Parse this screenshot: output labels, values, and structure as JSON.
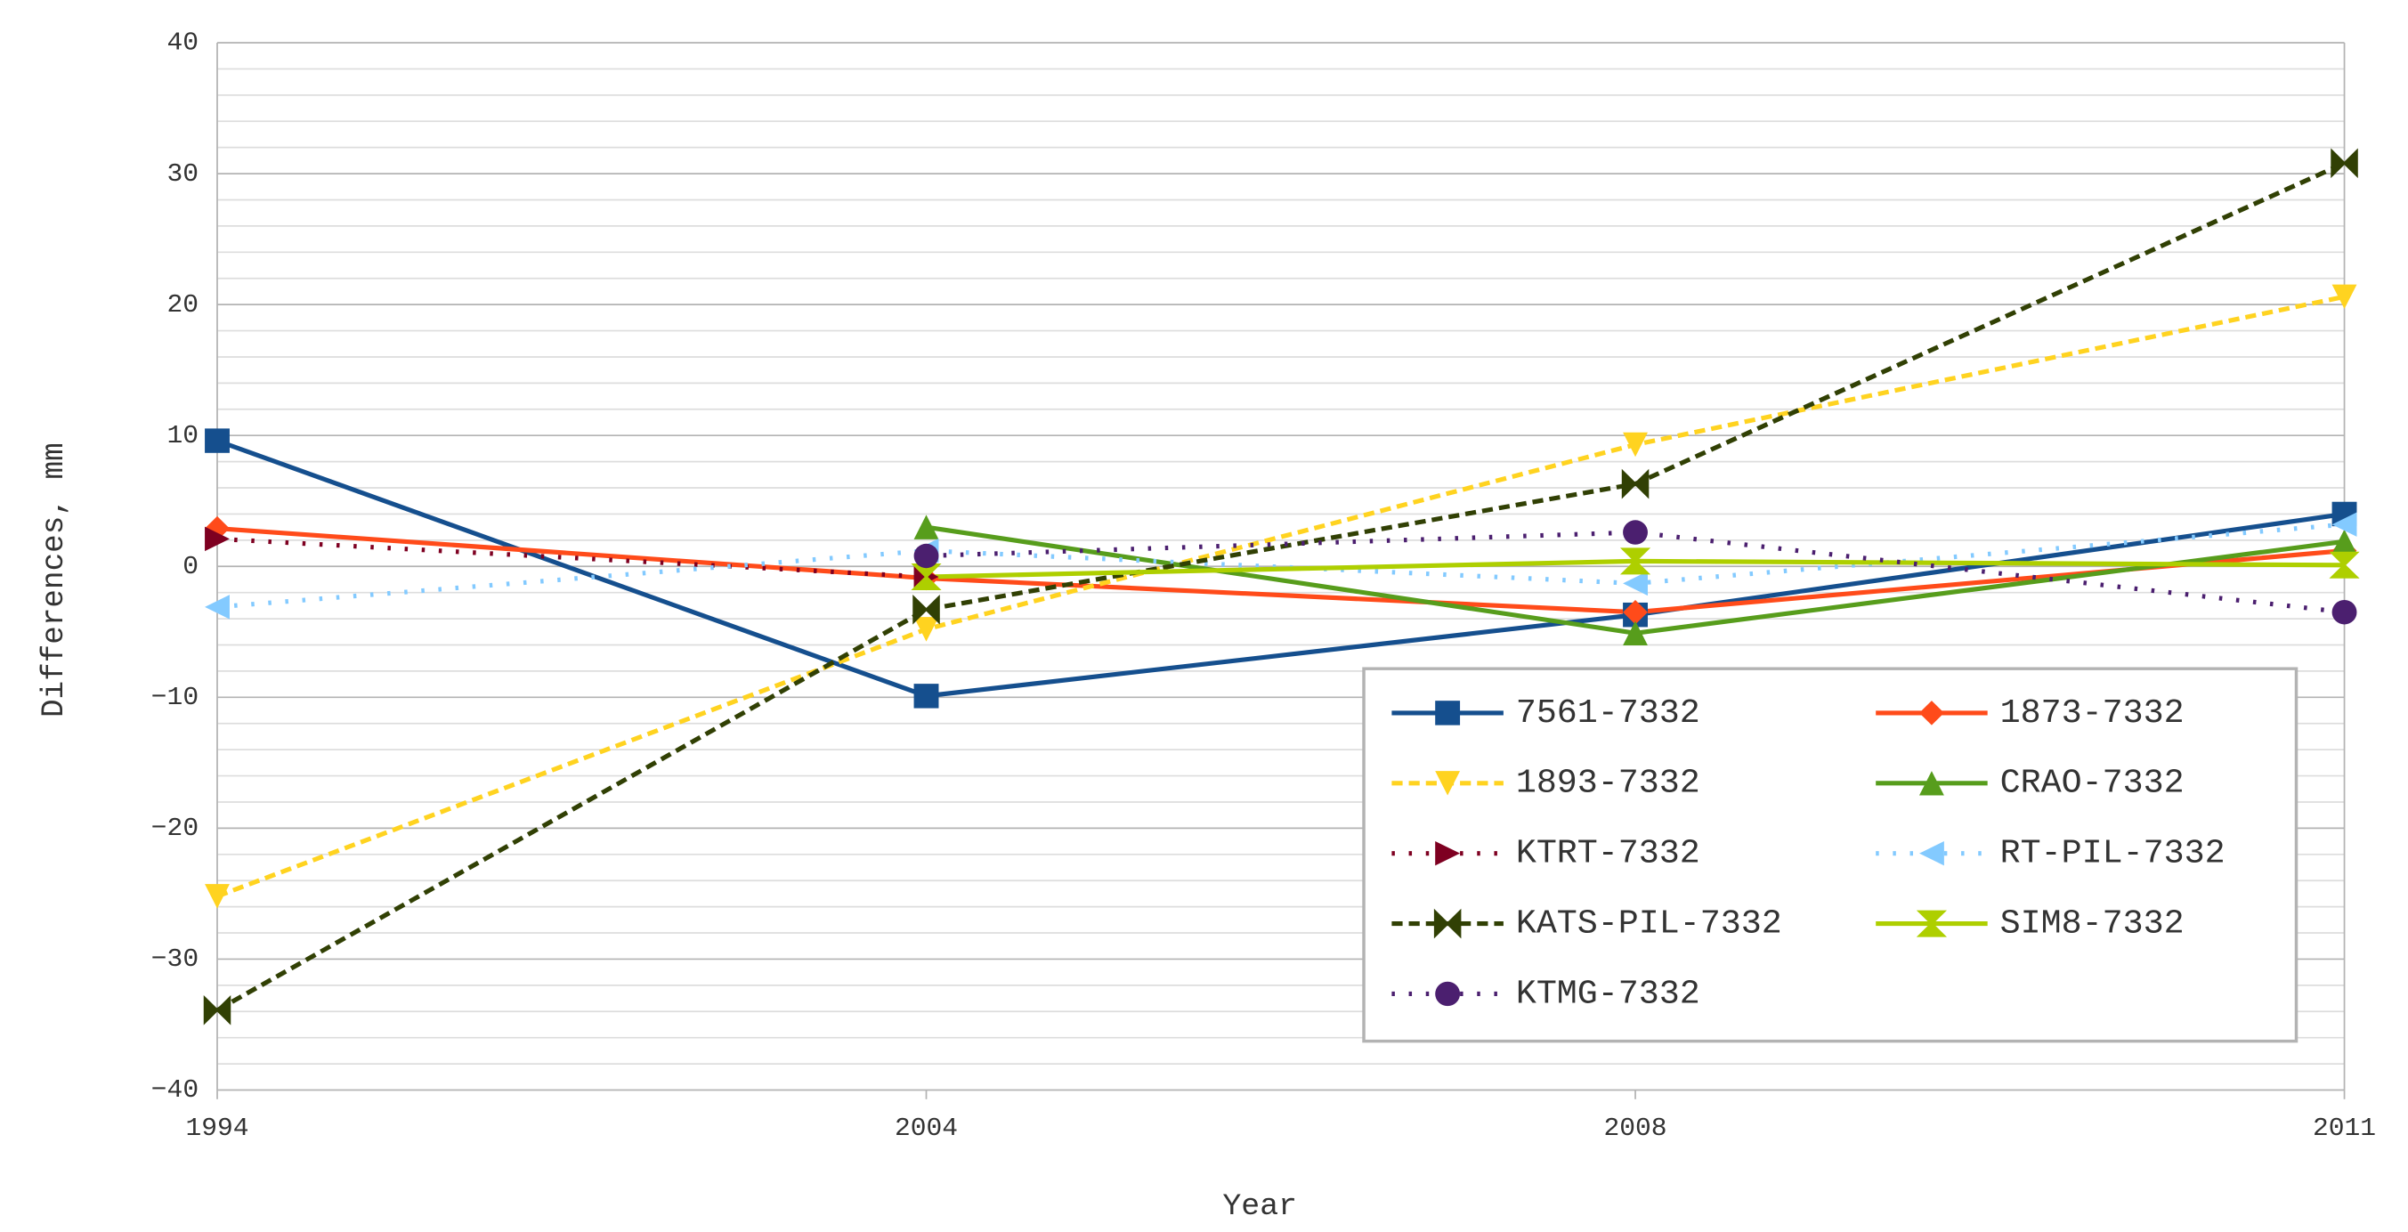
{
  "chart_data": {
    "type": "line",
    "x_label": "Year",
    "y_label": "Differences, mm",
    "categories": [
      "1994",
      "2004",
      "2008",
      "2011"
    ],
    "ylim": [
      -40,
      40
    ],
    "yticks": [
      {
        "value": -40,
        "label": "−40"
      },
      {
        "value": -30,
        "label": "−30"
      },
      {
        "value": -20,
        "label": "−20"
      },
      {
        "value": -10,
        "label": "−10"
      },
      0,
      10,
      20,
      30,
      40
    ],
    "grid": true,
    "minor_grid": true,
    "legend": "lower right",
    "series": [
      {
        "name": "7561-7332",
        "color": "#154f8e",
        "dash": "solid",
        "marker": "square",
        "values": [
          9.6,
          -9.9,
          -3.7,
          4.0
        ]
      },
      {
        "name": "1873-7332",
        "color": "#ff4b1a",
        "dash": "solid",
        "marker": "diamond",
        "values": [
          2.9,
          -0.9,
          -3.5,
          1.2
        ]
      },
      {
        "name": "1893-7332",
        "color": "#ffd320",
        "dash": "dashed",
        "marker": "triangle-down",
        "values": [
          -25.2,
          -4.8,
          9.3,
          20.6
        ]
      },
      {
        "name": "CRAO-7332",
        "color": "#579d1c",
        "dash": "solid",
        "marker": "triangle-up",
        "values": [
          null,
          3.0,
          -5.1,
          1.9
        ]
      },
      {
        "name": "KTRT-7332",
        "color": "#7e0021",
        "dash": "dotted",
        "marker": "triangle-right",
        "values": [
          2.1,
          -0.8,
          null,
          null
        ]
      },
      {
        "name": "RT-PIL-7332",
        "color": "#83caff",
        "dash": "dotted",
        "marker": "triangle-left",
        "values": [
          -3.1,
          1.2,
          -1.3,
          3.2
        ]
      },
      {
        "name": "KATS-PIL-7332",
        "color": "#314004",
        "dash": "dashed",
        "marker": "bowtie",
        "values": [
          -33.9,
          -3.3,
          6.3,
          30.8
        ]
      },
      {
        "name": "SIM8-7332",
        "color": "#aecf00",
        "dash": "solid",
        "marker": "hourglass",
        "values": [
          null,
          -0.8,
          0.4,
          0.1
        ]
      },
      {
        "name": "KTMG-7332",
        "color": "#4b1f6f",
        "dash": "dotted",
        "marker": "circle",
        "values": [
          null,
          0.8,
          2.6,
          -3.5
        ]
      }
    ]
  }
}
